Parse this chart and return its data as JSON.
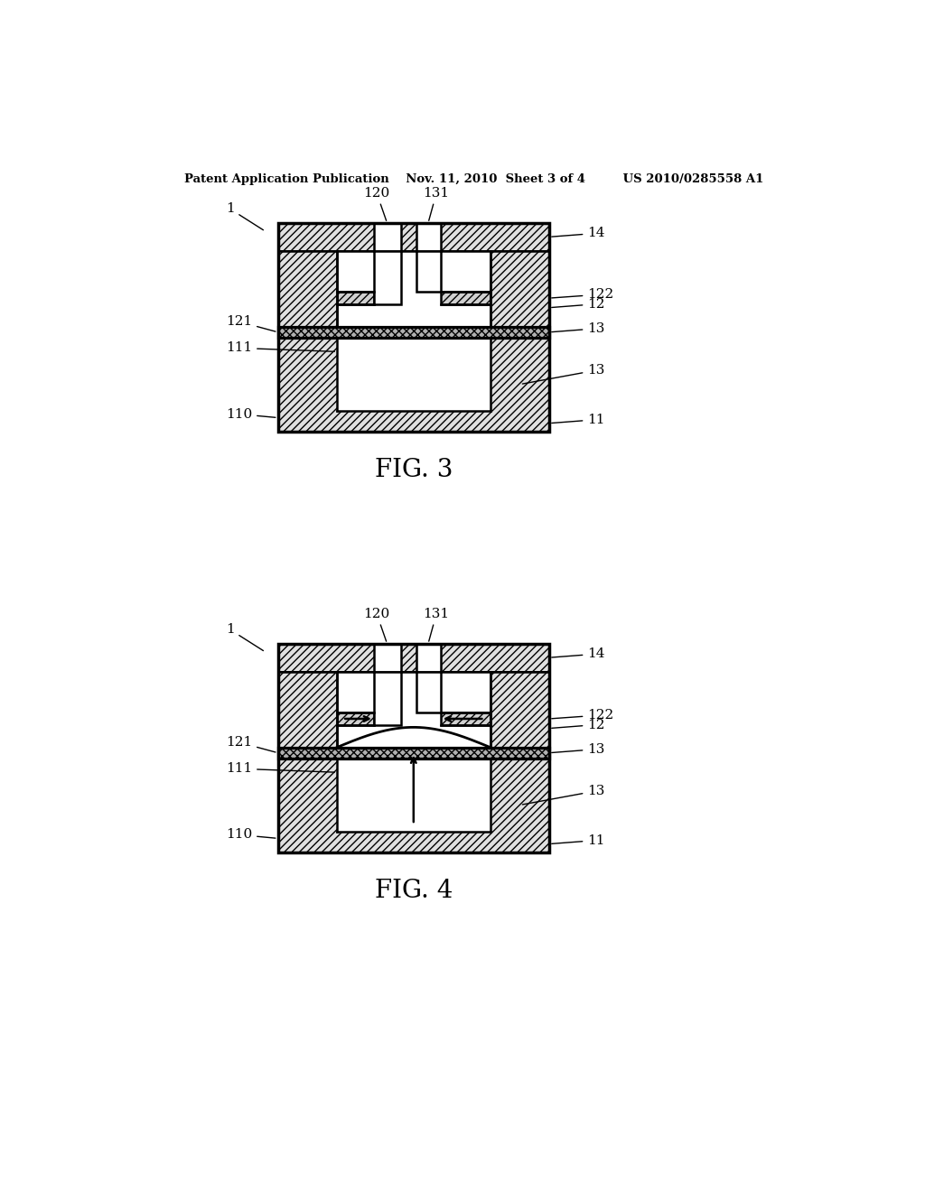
{
  "bg_color": "#ffffff",
  "line_color": "#000000",
  "header_text": "Patent Application Publication    Nov. 11, 2010  Sheet 3 of 4         US 2010/0285558 A1",
  "fig3_label": "FIG. 3",
  "fig4_label": "FIG. 4",
  "label_fontsize": 11,
  "fig_label_fontsize": 20,
  "header_fontsize": 9.5
}
